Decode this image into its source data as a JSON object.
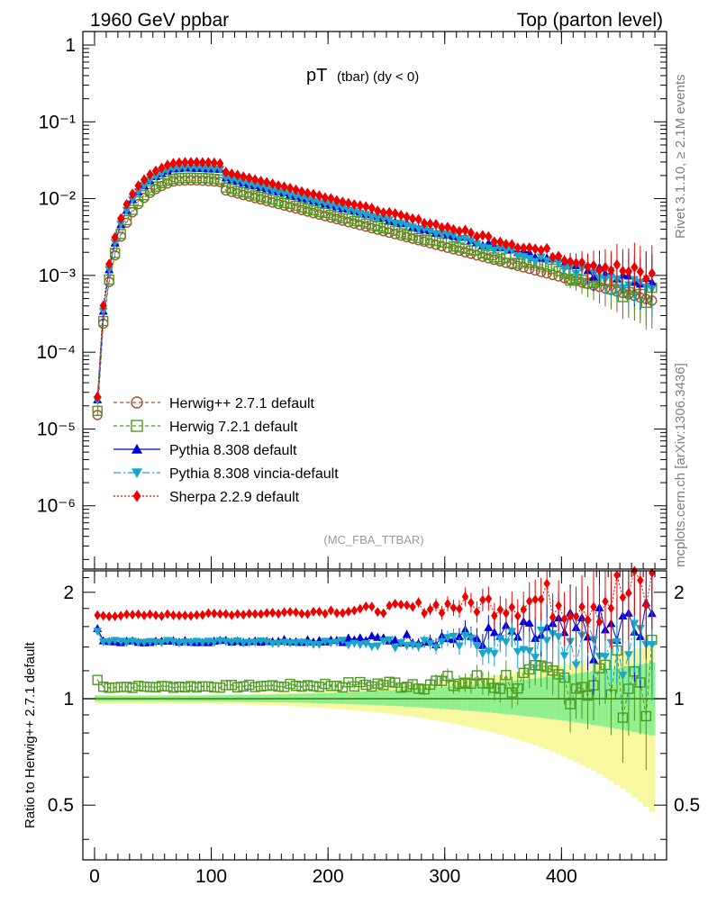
{
  "header": {
    "left": "1960 GeV ppbar",
    "right": "Top (parton level)"
  },
  "side_labels": {
    "rivet": "Rivet 3.1.10, ≥ 2.1M events",
    "mcplots": "mcplots.cern.ch [arXiv:1306.3436]"
  },
  "plot": {
    "title_main": "pT",
    "title_sub": "(tbar) (dy < 0)",
    "analysis": "(MC_FBA_TTBAR)"
  },
  "ratio": {
    "ylabel": "Ratio to Herwig++ 2.7.1 default"
  },
  "colors": {
    "herwigpp": "#a0522d",
    "herwig7": "#4c9a1e",
    "pythia": "#0000dd",
    "vincia": "#1aa6c8",
    "sherpa": "#ee0000",
    "band_green": "#90f090",
    "band_yellow": "#f8f8a0"
  },
  "chart_data": {
    "type": "line",
    "x_range": [
      -10,
      490
    ],
    "main_ylog": true,
    "main_ylim": [
      1.5e-07,
      1.5
    ],
    "ratio_ylim": [
      0.35,
      2.3
    ],
    "x_ticks": [
      "0",
      "100",
      "200",
      "300",
      "400"
    ],
    "main_y_ticks": [
      "1",
      "10⁻¹",
      "10⁻²",
      "10⁻³",
      "10⁻⁴",
      "10⁻⁵",
      "10⁻⁶"
    ],
    "ratio_y_ticks": [
      "2",
      "1",
      "0.5"
    ],
    "ratio_y_tick_values": [
      2,
      1,
      0.5
    ],
    "reference": {
      "pk_x": 68,
      "pk_y": 0.0168,
      "rise_s": 0.4,
      "rise_p": 2.5,
      "tail_slope": 0.00853,
      "tail_from": 110
    },
    "series": [
      {
        "name": "Herwig++ 2.7.1 default",
        "key": "herwigpp",
        "ratio_start": 1.0,
        "ratio_end": 1.0,
        "marker": "circle-open",
        "dash": "4,3"
      },
      {
        "name": "Herwig 7.2.1 default",
        "key": "herwig7",
        "ratio_start": 1.08,
        "ratio_end": 1.15,
        "marker": "square-open",
        "dash": "4,3"
      },
      {
        "name": "Pythia 8.308 default",
        "key": "pythia",
        "ratio_start": 1.45,
        "ratio_end": 1.55,
        "marker": "triangle-up",
        "dash": ""
      },
      {
        "name": "Pythia 8.308 vincia-default",
        "key": "vincia",
        "ratio_start": 1.45,
        "ratio_end": 1.4,
        "marker": "triangle-down",
        "dash": "8,3,2,3"
      },
      {
        "name": "Sherpa 2.2.9 default",
        "key": "sherpa",
        "ratio_start": 1.72,
        "ratio_end": 2.0,
        "marker": "diamond",
        "dash": "2,2"
      }
    ]
  }
}
